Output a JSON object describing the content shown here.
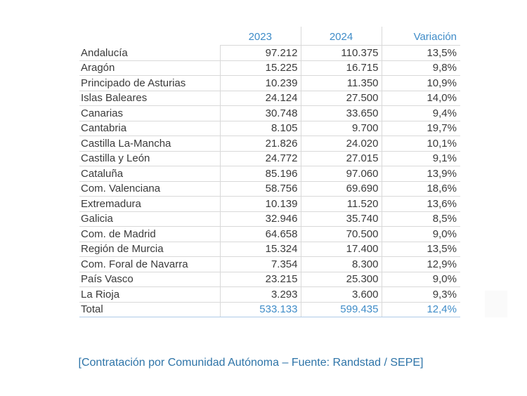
{
  "table": {
    "columns": [
      "2023",
      "2024",
      "Variación"
    ],
    "rows": [
      {
        "region": "Andalucía",
        "y2023": "97.212",
        "y2024": "110.375",
        "variacion": "13,5%"
      },
      {
        "region": "Aragón",
        "y2023": "15.225",
        "y2024": "16.715",
        "variacion": "9,8%"
      },
      {
        "region": "Principado de Asturias",
        "y2023": "10.239",
        "y2024": "11.350",
        "variacion": "10,9%"
      },
      {
        "region": "Islas Baleares",
        "y2023": "24.124",
        "y2024": "27.500",
        "variacion": "14,0%"
      },
      {
        "region": "Canarias",
        "y2023": "30.748",
        "y2024": "33.650",
        "variacion": "9,4%"
      },
      {
        "region": "Cantabria",
        "y2023": "8.105",
        "y2024": "9.700",
        "variacion": "19,7%"
      },
      {
        "region": "Castilla La-Mancha",
        "y2023": "21.826",
        "y2024": "24.020",
        "variacion": "10,1%"
      },
      {
        "region": "Castilla y León",
        "y2023": "24.772",
        "y2024": "27.015",
        "variacion": "9,1%"
      },
      {
        "region": "Cataluña",
        "y2023": "85.196",
        "y2024": "97.060",
        "variacion": "13,9%"
      },
      {
        "region": "Com. Valenciana",
        "y2023": "58.756",
        "y2024": "69.690",
        "variacion": "18,6%"
      },
      {
        "region": "Extremadura",
        "y2023": "10.139",
        "y2024": "11.520",
        "variacion": "13,6%"
      },
      {
        "region": "Galicia",
        "y2023": "32.946",
        "y2024": "35.740",
        "variacion": "8,5%"
      },
      {
        "region": "Com. de Madrid",
        "y2023": "64.658",
        "y2024": "70.500",
        "variacion": "9,0%"
      },
      {
        "region": "Región de Murcia",
        "y2023": "15.324",
        "y2024": "17.400",
        "variacion": "13,5%"
      },
      {
        "region": "Com. Foral de Navarra",
        "y2023": "7.354",
        "y2024": "8.300",
        "variacion": "12,9%"
      },
      {
        "region": "País Vasco",
        "y2023": "23.215",
        "y2024": "25.300",
        "variacion": "9,0%"
      },
      {
        "region": "La Rioja",
        "y2023": "3.293",
        "y2024": "3.600",
        "variacion": "9,3%"
      }
    ],
    "total": {
      "region": "Total",
      "y2023": "533.133",
      "y2024": "599.435",
      "variacion": "12,4%"
    }
  },
  "caption": "[Contratación por Comunidad Autónoma – Fuente: Randstad / SEPE]",
  "colors": {
    "header_text": "#3f8cc8",
    "total_text": "#3f8cc8",
    "caption_text": "#2e74a8",
    "body_text": "#3a3a3a",
    "row_border": "#d9d9d9",
    "total_border": "#aecbe8"
  },
  "chart_data": {
    "type": "table",
    "title": "",
    "caption": "[Contratación por Comunidad Autónoma – Fuente: Randstad / SEPE]",
    "columns": [
      "Comunidad Autónoma",
      "2023",
      "2024",
      "Variación %"
    ],
    "rows": [
      [
        "Andalucía",
        97212,
        110375,
        13.5
      ],
      [
        "Aragón",
        15225,
        16715,
        9.8
      ],
      [
        "Principado de Asturias",
        10239,
        11350,
        10.9
      ],
      [
        "Islas Baleares",
        24124,
        27500,
        14.0
      ],
      [
        "Canarias",
        30748,
        33650,
        9.4
      ],
      [
        "Cantabria",
        8105,
        9700,
        19.7
      ],
      [
        "Castilla La-Mancha",
        21826,
        24020,
        10.1
      ],
      [
        "Castilla y León",
        24772,
        27015,
        9.1
      ],
      [
        "Cataluña",
        85196,
        97060,
        13.9
      ],
      [
        "Com. Valenciana",
        58756,
        69690,
        18.6
      ],
      [
        "Extremadura",
        10139,
        11520,
        13.6
      ],
      [
        "Galicia",
        32946,
        35740,
        8.5
      ],
      [
        "Com. de Madrid",
        64658,
        70500,
        9.0
      ],
      [
        "Región de Murcia",
        15324,
        17400,
        13.5
      ],
      [
        "Com. Foral de Navarra",
        7354,
        8300,
        12.9
      ],
      [
        "País Vasco",
        23215,
        25300,
        9.0
      ],
      [
        "La Rioja",
        3293,
        3600,
        9.3
      ],
      [
        "Total",
        533133,
        599435,
        12.4
      ]
    ]
  }
}
